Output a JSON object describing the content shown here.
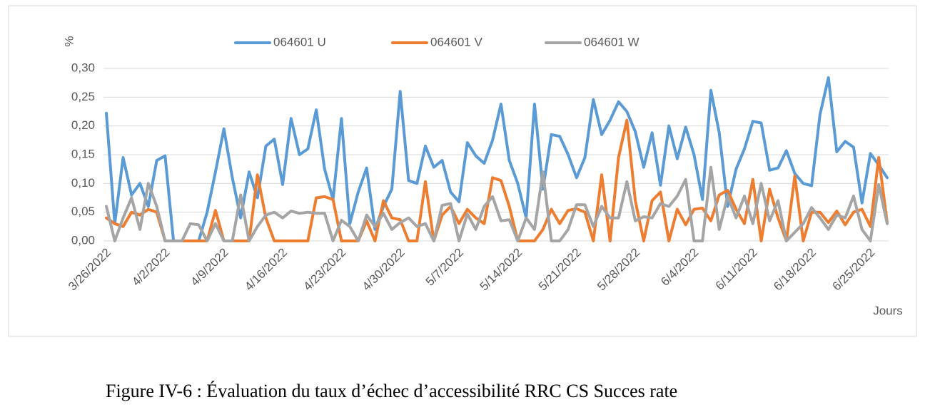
{
  "chart_data": {
    "type": "line",
    "y_axis_label": "%",
    "x_axis_label": "Jours",
    "caption": "Figure IV-6 : Évaluation du taux d’échec d’accessibilité RRC CS Succes rate",
    "categories": [
      "3/26/2022",
      null,
      null,
      null,
      null,
      null,
      null,
      "4/2/2022",
      null,
      null,
      null,
      null,
      null,
      null,
      "4/9/2022",
      null,
      null,
      null,
      null,
      null,
      null,
      "4/16/2022",
      null,
      null,
      null,
      null,
      null,
      null,
      "4/23/2022",
      null,
      null,
      null,
      null,
      null,
      null,
      "4/30/2022",
      null,
      null,
      null,
      null,
      null,
      null,
      "5/7/2022",
      null,
      null,
      null,
      null,
      null,
      null,
      "5/14/2022",
      null,
      null,
      null,
      null,
      null,
      null,
      "5/21/2022",
      null,
      null,
      null,
      null,
      null,
      null,
      "5/28/2022",
      null,
      null,
      null,
      null,
      null,
      null,
      "6/4/2022",
      null,
      null,
      null,
      null,
      null,
      null,
      "6/11/2022",
      null,
      null,
      null,
      null,
      null,
      null,
      "6/18/2022",
      null,
      null,
      null,
      null,
      null,
      null,
      "6/25/2022",
      null,
      null
    ],
    "series": [
      {
        "name": "064601 U",
        "color": "#5b9bd5",
        "values": [
          0.222,
          0.03,
          0.145,
          0.08,
          0.1,
          0.06,
          0.14,
          0.148,
          0,
          0,
          0,
          0,
          0.05,
          0.12,
          0.195,
          0.11,
          0.04,
          0.12,
          0.075,
          0.165,
          0.177,
          0.098,
          0.213,
          0.15,
          0.16,
          0.228,
          0.125,
          0.072,
          0.213,
          0.03,
          0.085,
          0.127,
          0.02,
          0.06,
          0.09,
          0.26,
          0.105,
          0.1,
          0.165,
          0.128,
          0.14,
          0.085,
          0.068,
          0.171,
          0.148,
          0.135,
          0.175,
          0.238,
          0.14,
          0.1,
          0.04,
          0.238,
          0.09,
          0.185,
          0.182,
          0.15,
          0.11,
          0.145,
          0.246,
          0.185,
          0.21,
          0.242,
          0.225,
          0.19,
          0.128,
          0.188,
          0.097,
          0.2,
          0.143,
          0.198,
          0.15,
          0.072,
          0.262,
          0.188,
          0.06,
          0.125,
          0.16,
          0.208,
          0.205,
          0.123,
          0.127,
          0.157,
          0.117,
          0.1,
          0.096,
          0.22,
          0.284,
          0.155,
          0.173,
          0.163,
          0.066,
          0.152,
          0.132,
          0.11
        ]
      },
      {
        "name": "064601 V",
        "color": "#ed7d31",
        "values": [
          0.04,
          0.03,
          0.025,
          0.05,
          0.045,
          0.055,
          0.05,
          0,
          0,
          0,
          0,
          0,
          0,
          0.053,
          0,
          0,
          0,
          0,
          0.115,
          0.04,
          0,
          0,
          0,
          0,
          0,
          0.075,
          0.077,
          0.072,
          0,
          0,
          0,
          0.035,
          0,
          0.07,
          0.04,
          0.037,
          0,
          0,
          0.103,
          0,
          0.045,
          0.06,
          0.03,
          0.055,
          0.04,
          0.03,
          0.11,
          0.105,
          0.06,
          0,
          0,
          0,
          0.02,
          0.055,
          0.03,
          0.053,
          0.056,
          0.05,
          0,
          0.115,
          0,
          0.145,
          0.21,
          0.07,
          0,
          0.07,
          0.085,
          0,
          0.055,
          0.028,
          0.055,
          0.057,
          0.035,
          0.08,
          0.088,
          0.055,
          0.03,
          0.107,
          0,
          0.09,
          0.04,
          0,
          0.113,
          0,
          0.05,
          0.05,
          0.032,
          0.052,
          0.028,
          0.05,
          0.055,
          0.025,
          0.145,
          0.032
        ]
      },
      {
        "name": "064601 W",
        "color": "#a5a5a5",
        "values": [
          0.06,
          0,
          0.04,
          0.075,
          0.02,
          0.1,
          0.06,
          0,
          0,
          0,
          0.03,
          0.028,
          0,
          0.03,
          0,
          0,
          0.08,
          0,
          0.025,
          0.045,
          0.05,
          0.04,
          0.052,
          0.048,
          0.05,
          0.048,
          0.048,
          0,
          0.036,
          0.025,
          0,
          0.045,
          0.025,
          0.048,
          0.02,
          0.032,
          0.04,
          0.025,
          0.03,
          0,
          0.062,
          0.065,
          0,
          0.047,
          0.02,
          0.06,
          0.077,
          0.035,
          0.037,
          0,
          0.04,
          0.02,
          0.12,
          0,
          0,
          0.02,
          0.063,
          0.063,
          0.025,
          0.06,
          0.04,
          0.04,
          0.103,
          0.035,
          0.042,
          0.04,
          0.065,
          0.06,
          0.078,
          0.107,
          0,
          0,
          0.128,
          0.02,
          0.078,
          0.04,
          0.078,
          0.03,
          0.1,
          0.035,
          0.07,
          0,
          0.015,
          0.03,
          0.058,
          0.04,
          0.02,
          0.045,
          0.04,
          0.078,
          0.02,
          0,
          0.098,
          0.03
        ]
      }
    ],
    "ylim": [
      0,
      0.3
    ],
    "yticks": [
      {
        "value": 0,
        "label": "0,00"
      },
      {
        "value": 0.05,
        "label": "0,05"
      },
      {
        "value": 0.1,
        "label": "0,10"
      },
      {
        "value": 0.15,
        "label": "0,15"
      },
      {
        "value": 0.2,
        "label": "0,20"
      },
      {
        "value": 0.25,
        "label": "0,25"
      },
      {
        "value": 0.3,
        "label": "0,30"
      }
    ],
    "grid": true,
    "legend": "top"
  }
}
